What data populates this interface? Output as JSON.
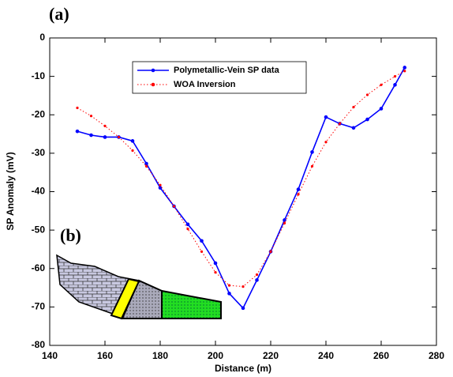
{
  "chart_data": {
    "type": "line",
    "panel_labels": [
      "(a)",
      "(b)"
    ],
    "xlabel": "Distance  (m)",
    "ylabel": "SP Anomaly  (mV)",
    "x": [
      150,
      155,
      160,
      165,
      170,
      175,
      180,
      185,
      190,
      195,
      200,
      205,
      210,
      215,
      220,
      225,
      230,
      235,
      240,
      245,
      250,
      255,
      260,
      265,
      268.5
    ],
    "series": [
      {
        "name": "Polymetallic-Vein SP data",
        "color": "#0000ff",
        "style": "solid",
        "values": [
          -24.3,
          -25.3,
          -25.8,
          -25.8,
          -26.8,
          -32.7,
          -39,
          -43.8,
          -48.5,
          -52.8,
          -58.6,
          -66.5,
          -70.3,
          -63,
          -55.6,
          -47.4,
          -39.4,
          -29.7,
          -20.6,
          -22.3,
          -23.4,
          -21.2,
          -18.4,
          -12.2,
          -7.7
        ]
      },
      {
        "name": "WOA Inversion",
        "color": "#ff0000",
        "style": "dotted",
        "values": [
          -18.2,
          -20.3,
          -22.9,
          -25.8,
          -29.3,
          -33.4,
          -38.3,
          -43.8,
          -49.7,
          -55.6,
          -61,
          -64.4,
          -64.7,
          -61.6,
          -55.6,
          -48.2,
          -40.7,
          -33.4,
          -27.1,
          -22.3,
          -18,
          -14.8,
          -12.2,
          -10,
          -8.6
        ]
      }
    ],
    "xlim": [
      140,
      280
    ],
    "xticks": [
      140,
      160,
      180,
      200,
      220,
      240,
      260,
      280
    ],
    "ylim": [
      -80,
      0
    ],
    "yticks": [
      0,
      -10,
      -20,
      -30,
      -40,
      -50,
      -60,
      -70,
      -80
    ]
  }
}
